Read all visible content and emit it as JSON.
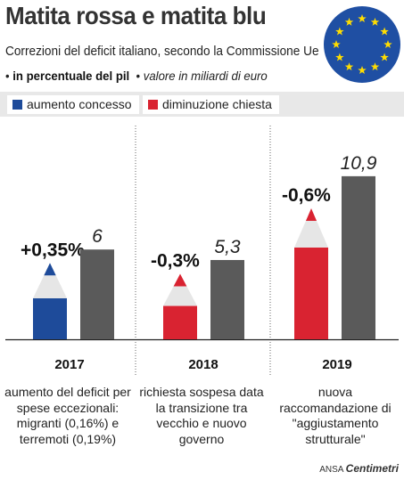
{
  "header": {
    "title": "Matita rossa e matita blu",
    "subtitle": "Correzioni del deficit italiano, secondo la Commissione Ue",
    "unit_bold": "in percentuale del pil",
    "unit_italic": "valore in miliardi di euro"
  },
  "legend": [
    {
      "label": "aumento concesso",
      "color": "#1e4b9a"
    },
    {
      "label": "diminuzione chiesta",
      "color": "#d92331"
    }
  ],
  "chart_data": {
    "type": "bar",
    "categories": [
      "2017",
      "2018",
      "2019"
    ],
    "series": [
      {
        "values": [
          0.35,
          -0.3,
          -0.6
        ],
        "labels": [
          "+0,35%",
          "-0,3%",
          "-0,6%"
        ],
        "colors": [
          "#1e4b9a",
          "#d92331",
          "#d92331"
        ]
      },
      {
        "values": [
          6,
          5.3,
          10.9
        ],
        "labels": [
          "6",
          "5,3",
          "10,9"
        ],
        "color": "#5a5a5a"
      }
    ],
    "notes": [
      "aumento del deficit per spese eccezionali: migranti (0,16%) e terremoti (0,19%)",
      "richiesta sospesa data la transizione tra vecchio e nuovo governo",
      "nuova raccomandazione di \"aggiustamento strutturale\""
    ],
    "xlabel": "",
    "ylabel": ""
  },
  "source": {
    "prefix": "ANSA",
    "brand": "Centimetri"
  },
  "colors": {
    "pencil_wood": "#e6e6e6",
    "pencil_tip_blue": "#1e4b9a",
    "pencil_tip_red": "#d92331",
    "flag_blue": "#1f4fa3",
    "flag_star": "#ffdd00"
  }
}
